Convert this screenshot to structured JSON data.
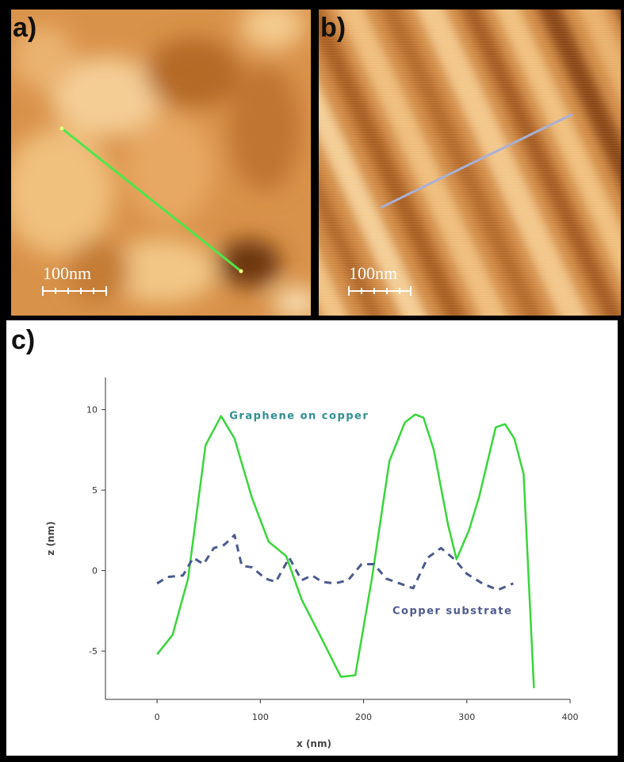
{
  "panels": {
    "a": {
      "letter": "a)",
      "scalebar_label": "100nm"
    },
    "b": {
      "letter": "b)",
      "scalebar_label": "100nm"
    },
    "c": {
      "letter": "c)"
    }
  },
  "colors": {
    "graphene_line": "#39d63a",
    "copper_line": "#4c5a8e",
    "profile_line_a": "#4ee64a",
    "profile_line_b": "#a9b0d4"
  },
  "chart_data": {
    "type": "line",
    "title": "",
    "xlabel": "x (nm)",
    "ylabel": "z (nm)",
    "xlim": [
      -50,
      400
    ],
    "ylim": [
      -8,
      12
    ],
    "xticks": [
      0,
      100,
      200,
      300,
      400
    ],
    "yticks": [
      -5,
      0,
      5,
      10
    ],
    "grid": false,
    "series": [
      {
        "name": "Graphene on copper",
        "style": "solid",
        "x": [
          0,
          15,
          30,
          47,
          62,
          75,
          92,
          108,
          125,
          140,
          160,
          178,
          192,
          208,
          225,
          240,
          250,
          258,
          268,
          282,
          290,
          302,
          312,
          328,
          337,
          346,
          355,
          365
        ],
        "y": [
          -5.2,
          -4,
          -0.5,
          7.8,
          9.6,
          8.2,
          4.5,
          1.8,
          0.9,
          -1.8,
          -4.3,
          -6.6,
          -6.5,
          -0.5,
          6.8,
          9.2,
          9.7,
          9.5,
          7.5,
          2.8,
          0.7,
          2.5,
          4.6,
          8.9,
          9.1,
          8.2,
          6,
          -7.3
        ]
      },
      {
        "name": "Copper substrate",
        "style": "dashed",
        "x": [
          0,
          10,
          25,
          35,
          45,
          55,
          65,
          75,
          82,
          92,
          105,
          115,
          128,
          140,
          150,
          160,
          172,
          185,
          198,
          210,
          222,
          235,
          248,
          262,
          275,
          288,
          300,
          315,
          330,
          345
        ],
        "y": [
          -0.8,
          -0.4,
          -0.3,
          0.8,
          0.4,
          1.4,
          1.6,
          2.2,
          0.3,
          0.2,
          -0.5,
          -0.7,
          0.8,
          -0.6,
          -0.3,
          -0.7,
          -0.8,
          -0.6,
          0.4,
          0.4,
          -0.5,
          -0.8,
          -1.1,
          0.8,
          1.4,
          0.7,
          -0.2,
          -0.8,
          -1.2,
          -0.8
        ]
      }
    ],
    "annotations": [
      {
        "text": "Graphene on copper",
        "x": 70,
        "y": 9.6
      },
      {
        "text": "Copper substrate",
        "x": 228,
        "y": -2.5
      }
    ]
  }
}
